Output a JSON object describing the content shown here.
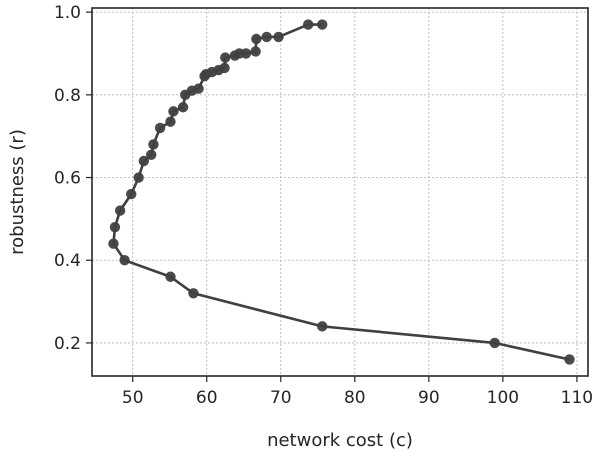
{
  "chart_data": {
    "type": "line",
    "xlabel": "network cost (c)",
    "ylabel": "robustness (r)",
    "xlim": [
      44.5,
      111.5
    ],
    "ylim": [
      0.12,
      1.01
    ],
    "xticks": [
      50,
      60,
      70,
      80,
      90,
      100,
      110
    ],
    "yticks": [
      0.2,
      0.4,
      0.6,
      0.8,
      1.0
    ],
    "xtick_labels": [
      "50",
      "60",
      "70",
      "80",
      "90",
      "100",
      "110"
    ],
    "ytick_labels": [
      "0.2",
      "0.4",
      "0.6",
      "0.8",
      "1.0"
    ],
    "grid": true,
    "series": [
      {
        "color": "#404040",
        "marker": "circle",
        "x": [
          75.6,
          73.7,
          69.7,
          68.1,
          66.7,
          66.6,
          65.3,
          64.4,
          63.8,
          62.5,
          62.4,
          61.6,
          60.7,
          59.9,
          59.7,
          58.9,
          58.0,
          57.1,
          56.8,
          55.5,
          55.1,
          53.7,
          52.8,
          52.5,
          51.5,
          50.8,
          49.8,
          48.3,
          47.6,
          47.4,
          48.9,
          55.1,
          58.2,
          75.6,
          98.9,
          109.0
        ],
        "y": [
          0.97,
          0.97,
          0.94,
          0.94,
          0.935,
          0.905,
          0.9,
          0.9,
          0.895,
          0.89,
          0.865,
          0.86,
          0.855,
          0.85,
          0.845,
          0.815,
          0.81,
          0.8,
          0.77,
          0.76,
          0.735,
          0.72,
          0.68,
          0.655,
          0.64,
          0.6,
          0.56,
          0.52,
          0.48,
          0.44,
          0.4,
          0.36,
          0.32,
          0.24,
          0.2,
          0.16
        ]
      }
    ]
  }
}
